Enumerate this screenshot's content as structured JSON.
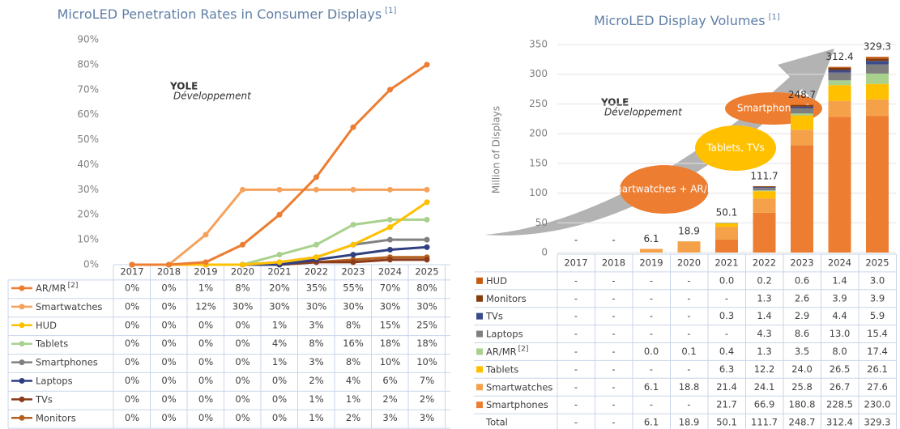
{
  "chart_data": [
    {
      "type": "line",
      "title": "MicroLED Penetration Rates in Consumer Displays",
      "title_note": "[1]",
      "logo": "YOLE",
      "logo_sub": "Développement",
      "categories": [
        "2017",
        "2018",
        "2019",
        "2020",
        "2021",
        "2022",
        "2023",
        "2024",
        "2025"
      ],
      "ylim": [
        0,
        90
      ],
      "yticks": [
        {
          "value": 0,
          "label": "0%"
        },
        {
          "value": 10,
          "label": "10%"
        },
        {
          "value": 20,
          "label": "20%"
        },
        {
          "value": 30,
          "label": "30%"
        },
        {
          "value": 40,
          "label": "40%"
        },
        {
          "value": 50,
          "label": "50%"
        },
        {
          "value": 60,
          "label": "60%"
        },
        {
          "value": 70,
          "label": "70%"
        },
        {
          "value": 80,
          "label": "80%"
        },
        {
          "value": 90,
          "label": "90%"
        }
      ],
      "grid": false,
      "series": [
        {
          "name": "AR/MR",
          "note": "[2]",
          "color": "#ed7d31",
          "values": [
            0,
            0,
            1,
            8,
            20,
            35,
            55,
            70,
            80
          ],
          "value_labels": [
            "0%",
            "0%",
            "1%",
            "8%",
            "20%",
            "35%",
            "55%",
            "70%",
            "80%"
          ]
        },
        {
          "name": "Smartwatches",
          "color": "#f5a25d",
          "values": [
            0,
            0,
            12,
            30,
            30,
            30,
            30,
            30,
            30
          ],
          "value_labels": [
            "0%",
            "0%",
            "12%",
            "30%",
            "30%",
            "30%",
            "30%",
            "30%",
            "30%"
          ]
        },
        {
          "name": "HUD",
          "color": "#ffc000",
          "values": [
            0,
            0,
            0,
            0,
            1,
            3,
            8,
            15,
            25
          ],
          "value_labels": [
            "0%",
            "0%",
            "0%",
            "0%",
            "1%",
            "3%",
            "8%",
            "15%",
            "25%"
          ]
        },
        {
          "name": "Tablets",
          "color": "#a9d18e",
          "values": [
            0,
            0,
            0,
            0,
            4,
            8,
            16,
            18,
            18
          ],
          "value_labels": [
            "0%",
            "0%",
            "0%",
            "0%",
            "4%",
            "8%",
            "16%",
            "18%",
            "18%"
          ]
        },
        {
          "name": "Smartphones",
          "color": "#808080",
          "values": [
            0,
            0,
            0,
            0,
            1,
            3,
            8,
            10,
            10
          ],
          "value_labels": [
            "0%",
            "0%",
            "0%",
            "0%",
            "1%",
            "3%",
            "8%",
            "10%",
            "10%"
          ]
        },
        {
          "name": "Laptops",
          "color": "#2f3f80",
          "values": [
            0,
            0,
            0,
            0,
            0,
            2,
            4,
            6,
            7
          ],
          "value_labels": [
            "0%",
            "0%",
            "0%",
            "0%",
            "0%",
            "2%",
            "4%",
            "6%",
            "7%"
          ]
        },
        {
          "name": "TVs",
          "color": "#8b3a1a",
          "values": [
            0,
            0,
            0,
            0,
            0,
            1,
            1,
            2,
            2
          ],
          "value_labels": [
            "0%",
            "0%",
            "0%",
            "0%",
            "0%",
            "1%",
            "1%",
            "2%",
            "2%"
          ]
        },
        {
          "name": "Monitors",
          "color": "#b4601e",
          "values": [
            0,
            0,
            0,
            0,
            0,
            1,
            2,
            3,
            3
          ],
          "value_labels": [
            "0%",
            "0%",
            "0%",
            "0%",
            "0%",
            "1%",
            "2%",
            "3%",
            "3%"
          ]
        }
      ]
    },
    {
      "type": "bar",
      "stacked": true,
      "title": "MicroLED Display Volumes",
      "title_note": "[1]",
      "ylabel": "Million of Displays",
      "logo": "YOLE",
      "logo_sub": "Développement",
      "annotations": [
        "Smartwatches + AR/MR",
        "Tablets, TVs",
        "Smartphones ?"
      ],
      "categories": [
        "2017",
        "2018",
        "2019",
        "2020",
        "2021",
        "2022",
        "2023",
        "2024",
        "2025"
      ],
      "ylim": [
        0,
        350
      ],
      "yticks": [
        0,
        50,
        100,
        150,
        200,
        250,
        300,
        350
      ],
      "grid": true,
      "series": [
        {
          "name": "HUD",
          "color": "#c55a11",
          "values": [
            null,
            null,
            null,
            null,
            0.0,
            0.2,
            0.6,
            1.4,
            3.0
          ],
          "value_labels": [
            "-",
            "-",
            "-",
            "-",
            "0.0",
            "0.2",
            "0.6",
            "1.4",
            "3.0"
          ]
        },
        {
          "name": "Monitors",
          "color": "#843c0c",
          "values": [
            null,
            null,
            null,
            null,
            null,
            1.3,
            2.6,
            3.9,
            3.9
          ],
          "value_labels": [
            "-",
            "-",
            "-",
            "-",
            "-",
            "1.3",
            "2.6",
            "3.9",
            "3.9"
          ]
        },
        {
          "name": "TVs",
          "color": "#3b4a8a",
          "values": [
            null,
            null,
            null,
            null,
            0.3,
            1.4,
            2.9,
            4.4,
            5.9
          ],
          "value_labels": [
            "-",
            "-",
            "-",
            "-",
            "0.3",
            "1.4",
            "2.9",
            "4.4",
            "5.9"
          ]
        },
        {
          "name": "Laptops",
          "color": "#7f7f7f",
          "values": [
            null,
            null,
            null,
            null,
            null,
            4.3,
            8.6,
            13.0,
            15.4
          ],
          "value_labels": [
            "-",
            "-",
            "-",
            "-",
            "-",
            "4.3",
            "8.6",
            "13.0",
            "15.4"
          ]
        },
        {
          "name": "AR/MR",
          "note": "[2]",
          "color": "#a9d18e",
          "values": [
            null,
            null,
            0.0,
            0.1,
            0.4,
            1.3,
            3.5,
            8.0,
            17.4
          ],
          "value_labels": [
            "-",
            "-",
            "0.0",
            "0.1",
            "0.4",
            "1.3",
            "3.5",
            "8.0",
            "17.4"
          ]
        },
        {
          "name": "Tablets",
          "color": "#ffc000",
          "values": [
            null,
            null,
            null,
            null,
            6.3,
            12.2,
            24.0,
            26.5,
            26.1
          ],
          "value_labels": [
            "-",
            "-",
            "-",
            "-",
            "6.3",
            "12.2",
            "24.0",
            "26.5",
            "26.1"
          ]
        },
        {
          "name": "Smartwatches",
          "color": "#f4a14a",
          "values": [
            null,
            null,
            6.1,
            18.8,
            21.4,
            24.1,
            25.8,
            26.7,
            27.6
          ],
          "value_labels": [
            "-",
            "-",
            "6.1",
            "18.8",
            "21.4",
            "24.1",
            "25.8",
            "26.7",
            "27.6"
          ]
        },
        {
          "name": "Smartphones",
          "color": "#ed7d31",
          "values": [
            null,
            null,
            null,
            null,
            21.7,
            66.9,
            180.8,
            228.5,
            230.0
          ],
          "value_labels": [
            "-",
            "-",
            "-",
            "-",
            "21.7",
            "66.9",
            "180.8",
            "228.5",
            "230.0"
          ]
        }
      ],
      "total_name": "Total",
      "totals": [
        null,
        null,
        6.1,
        18.9,
        50.1,
        111.7,
        248.7,
        312.4,
        329.3
      ],
      "totals_labels": [
        "-",
        "-",
        "6.1",
        "18.9",
        "50.1",
        "111.7",
        "248.7",
        "312.4",
        "329.3"
      ]
    }
  ]
}
